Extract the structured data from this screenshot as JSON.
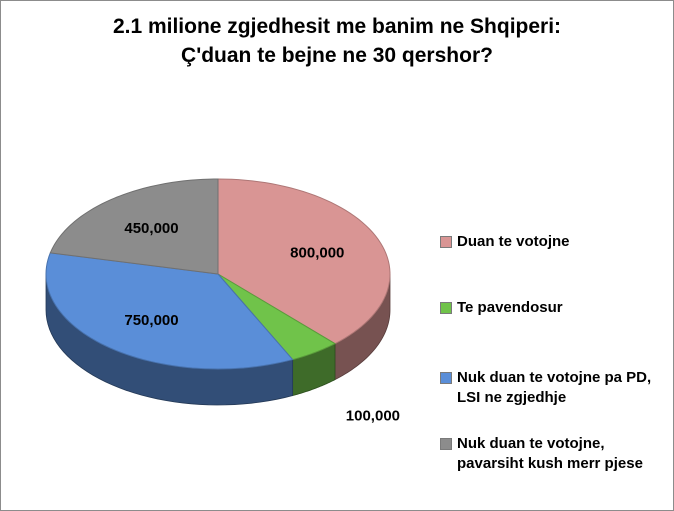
{
  "chart_data": {
    "type": "pie",
    "title": "2.1 milione zgjedhesit me banim ne Shqiperi:",
    "subtitle": "Ç'duan te bejne ne 30 qershor?",
    "three_d": true,
    "legend_position": "right",
    "series": [
      {
        "name": "",
        "slices": [
          {
            "label": "Duan te votojne",
            "value": 800000,
            "value_text": "800,000",
            "color": "#d99594"
          },
          {
            "label": "Te pavendosur",
            "value": 100000,
            "value_text": "100,000",
            "color": "#70c34a"
          },
          {
            "label": "Nuk duan te votojne pa PD, LSI ne zgjedhje",
            "value": 750000,
            "value_text": "750,000",
            "color": "#5a8ed8"
          },
          {
            "label": "Nuk duan te votojne, pavarsiht kush merr pjese",
            "value": 450000,
            "value_text": "450,000",
            "color": "#8c8c8c"
          }
        ]
      }
    ]
  }
}
